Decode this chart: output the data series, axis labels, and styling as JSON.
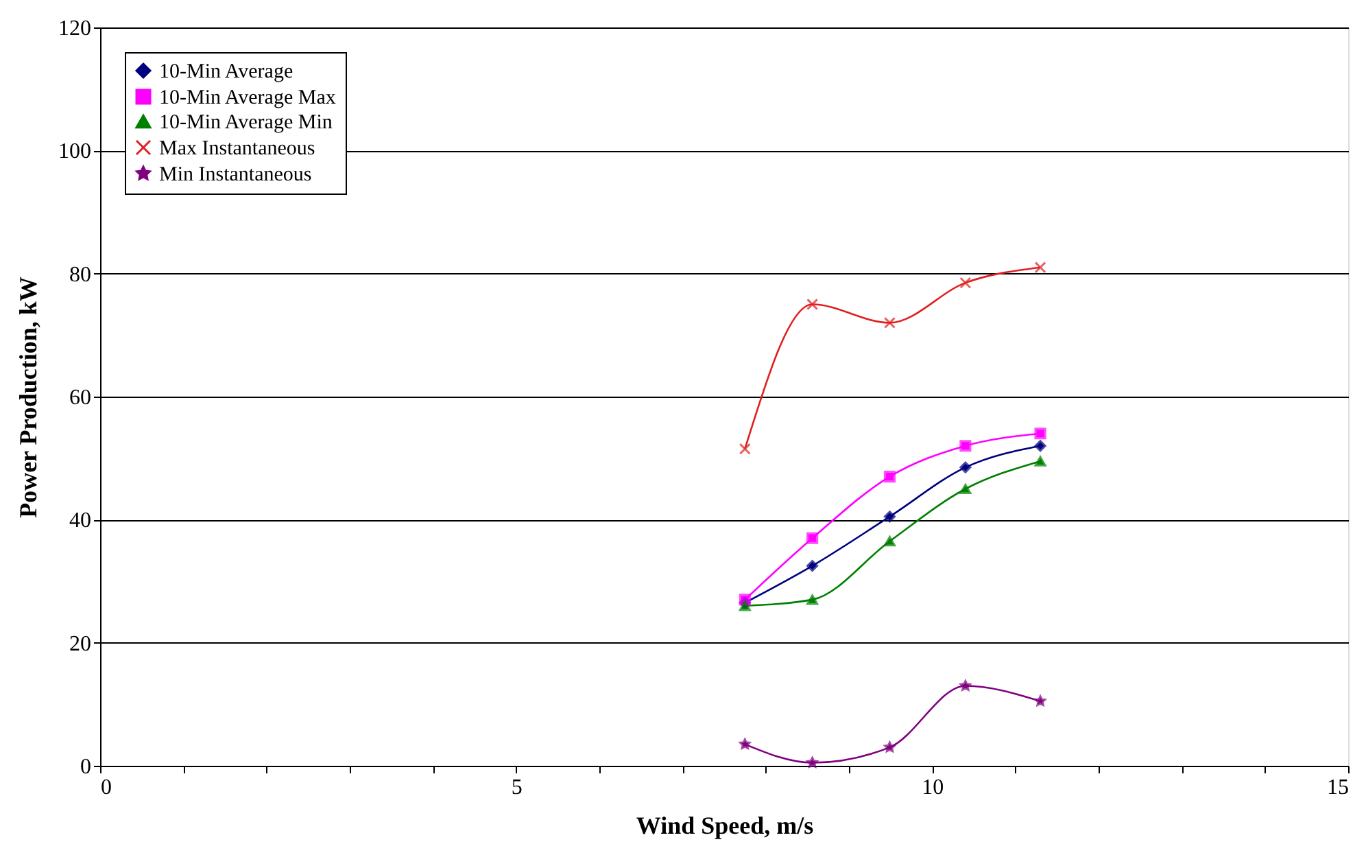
{
  "chart_data": {
    "type": "line",
    "xlabel": "Wind Speed, m/s",
    "ylabel": "Power Production, kW",
    "x": [
      7.75,
      8.56,
      9.49,
      10.4,
      11.3
    ],
    "series": [
      {
        "name": "10-Min Average",
        "color": "#000080",
        "marker": "diamond",
        "values": [
          26.5,
          32.5,
          40.5,
          48.5,
          52
        ]
      },
      {
        "name": "10-Min Average Max",
        "color": "#ff00ff",
        "marker": "square",
        "values": [
          27,
          37,
          47,
          52,
          54
        ]
      },
      {
        "name": "10-Min Average Min",
        "color": "#008000",
        "marker": "triangle",
        "values": [
          26,
          27,
          36.5,
          45,
          49.5
        ]
      },
      {
        "name": "Max Instantaneous",
        "color": "#e02020",
        "marker": "cross",
        "values": [
          51.5,
          75,
          72,
          78.5,
          81
        ]
      },
      {
        "name": "Min Instantaneous",
        "color": "#800080",
        "marker": "star",
        "values": [
          3.5,
          0.5,
          3,
          13,
          10.5
        ]
      }
    ],
    "xlim": [
      0,
      15
    ],
    "xticks": [
      0,
      {
        "value": 1,
        "label": null
      },
      {
        "value": 2,
        "label": null
      },
      {
        "value": 3,
        "label": null
      },
      {
        "value": 4,
        "label": null
      },
      5,
      {
        "value": 6,
        "label": null
      },
      {
        "value": 7,
        "label": null
      },
      {
        "value": 8,
        "label": null
      },
      {
        "value": 9,
        "label": null
      },
      10,
      {
        "value": 11,
        "label": null
      },
      {
        "value": 12,
        "label": null
      },
      {
        "value": 13,
        "label": null
      },
      {
        "value": 14,
        "label": null
      },
      15
    ],
    "ylim": [
      0,
      120
    ],
    "yticks": [
      0,
      20,
      40,
      60,
      80,
      100,
      120
    ],
    "grid": "y",
    "legend": "top left"
  }
}
